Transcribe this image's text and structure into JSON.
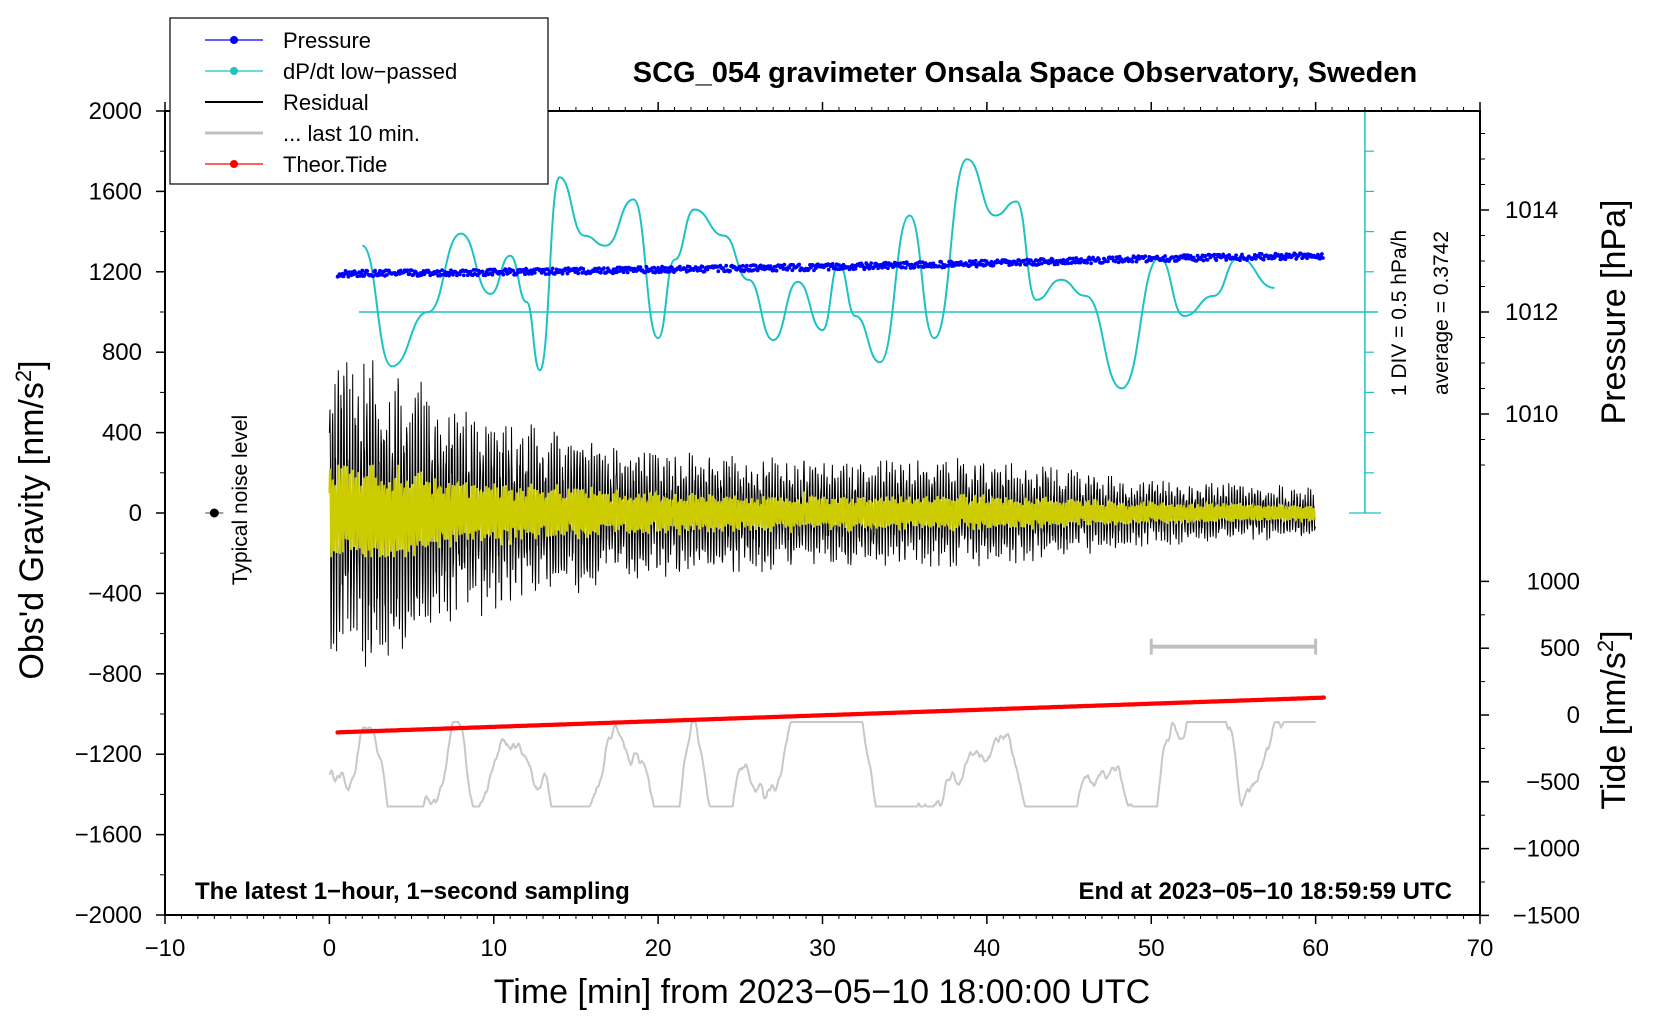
{
  "chart_data": {
    "type": "line",
    "title": "SCG_054 gravimeter Onsala Space Observatory, Sweden",
    "xlabel": "Time [min] from 2023−05−10 18:00:00 UTC",
    "ylabel_left": "Obs'd Gravity [nm/s",
    "ylabel_left_sup": "2",
    "ylabel_left_close": "]",
    "ylabel_right_pressure": "Pressure [hPa]",
    "ylabel_right_tide": "Tide [nm/s",
    "ylabel_right_tide_sup": "2",
    "ylabel_right_tide_close": "]",
    "xlim": [
      -10,
      70
    ],
    "ylim": [
      -2000,
      2000
    ],
    "x_ticks": [
      "−10",
      "0",
      "10",
      "20",
      "30",
      "40",
      "50",
      "60",
      "70"
    ],
    "y_ticks": [
      "−2000",
      "−1600",
      "−1200",
      "−800",
      "−400",
      "0",
      "400",
      "800",
      "1200",
      "1600",
      "2000"
    ],
    "pressure_ticks": [
      "1010",
      "1012",
      "1014"
    ],
    "pressure_tick_values": [
      1010,
      1012,
      1014
    ],
    "tide_ticks": [
      "−1500",
      "−1000",
      "−500",
      "0",
      "500",
      "1000"
    ],
    "tide_tick_values": [
      -1500,
      -1000,
      -500,
      0,
      500,
      1000
    ],
    "legend": {
      "pressure": "Pressure",
      "dpdt": "dP/dt low−passed",
      "residual": "Residual",
      "last10": "... last 10 min.",
      "tide": "Theor.Tide"
    },
    "annotations": {
      "noise": "Typical noise level",
      "scale": "1 DIV = 0.5 hPa/h",
      "average": "average = 0.3742",
      "bottom_left": "The latest 1−hour, 1−second sampling",
      "bottom_right": "End at 2023−05−10 18:59:59 UTC"
    },
    "colors": {
      "pressure": "#0000ff",
      "dpdt": "#1ec2c2",
      "residual": "#000000",
      "last10": "#c0c0c0",
      "tide": "#ff0000",
      "filtered": "#cccc00",
      "lower_trace": "#c8c8c8"
    },
    "series": [
      {
        "name": "Pressure",
        "unit": "hPa",
        "x": [
          0.5,
          10,
          20,
          30,
          40,
          50,
          60.5
        ],
        "values": [
          1012.75,
          1012.78,
          1012.83,
          1012.88,
          1012.95,
          1013.05,
          1013.1
        ]
      },
      {
        "name": "dP/dt low-passed",
        "unit": "gravity-axis equiv",
        "x": [
          2,
          3.8,
          6,
          8,
          9.8,
          11,
          12,
          12.8,
          14,
          15.5,
          16.8,
          18.5,
          20,
          21,
          22.2,
          24,
          25.5,
          27,
          28.5,
          30,
          31,
          32,
          33.5,
          35.3,
          36.8,
          38.8,
          40.5,
          41.8,
          43,
          44.5,
          46,
          48.2,
          50.5,
          52,
          53.8,
          55.3,
          57.5
        ],
        "values": [
          1330,
          730,
          1000,
          1390,
          1090,
          1280,
          1050,
          710,
          1670,
          1380,
          1330,
          1560,
          870,
          1260,
          1510,
          1380,
          1160,
          860,
          1150,
          910,
          1240,
          980,
          750,
          1480,
          870,
          1760,
          1480,
          1550,
          1060,
          1160,
          1080,
          620,
          1270,
          980,
          1080,
          1270,
          1120
        ]
      },
      {
        "name": "Residual",
        "x": [
          0,
          10,
          20,
          30,
          40,
          50,
          60
        ],
        "amplitude_envelope": [
          800,
          450,
          300,
          250,
          250,
          150,
          120
        ]
      },
      {
        "name": "Theor.Tide",
        "unit": "nm/s2",
        "x": [
          0.5,
          60.5
        ],
        "values": [
          -130,
          130
        ]
      },
      {
        "name": "last 10 min marker",
        "x": [
          50,
          60
        ],
        "values": [
          -665,
          -665
        ]
      }
    ],
    "noise_level": {
      "x": -7,
      "y": 0,
      "error": 30
    },
    "pressure_zero_line_gravity": 1000,
    "scale_bar": {
      "x": 63,
      "from": 0,
      "to": 2000,
      "div": 200
    }
  }
}
